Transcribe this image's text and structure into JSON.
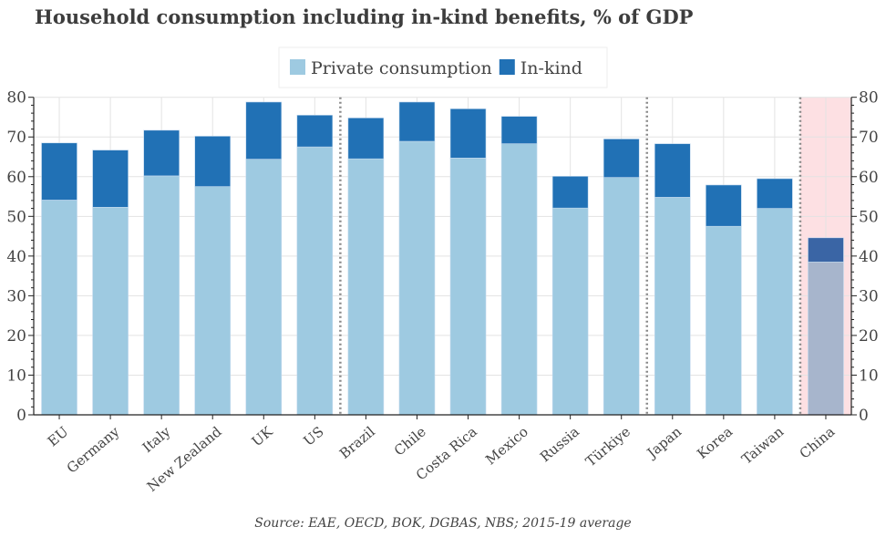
{
  "chart_data": {
    "type": "bar",
    "stacked": true,
    "title": "Household consumption including in-kind benefits, % of GDP",
    "source": "Source: EAE, OECD, BOK, DGBAS, NBS; 2015-19 average",
    "categories": [
      "EU",
      "Germany",
      "Italy",
      "New Zealand",
      "UK",
      "US",
      "Brazil",
      "Chile",
      "Costa Rica",
      "Mexico",
      "Russia",
      "Türkiye",
      "Japan",
      "Korea",
      "Taiwan",
      "China"
    ],
    "series": [
      {
        "name": "Private consumption",
        "color": "#9ecae1",
        "values": [
          54.1,
          52.3,
          60.2,
          57.5,
          64.4,
          67.5,
          64.5,
          68.9,
          64.7,
          68.3,
          52.1,
          59.8,
          54.8,
          47.5,
          52.0,
          38.5
        ]
      },
      {
        "name": "In-kind",
        "color": "#2171b5",
        "values": [
          14.4,
          14.4,
          11.5,
          12.7,
          14.4,
          8.0,
          10.3,
          9.9,
          12.4,
          6.9,
          8.0,
          9.7,
          13.5,
          10.4,
          7.5,
          6.1
        ]
      }
    ],
    "highlight": {
      "category": "China",
      "background": "#fde0e3",
      "private_color": "#a7b5cc",
      "inkind_color": "#3a65a5"
    },
    "group_dividers_after": [
      "US",
      "Türkiye",
      "Taiwan"
    ],
    "ylim": [
      0,
      80
    ],
    "yticks": [
      0,
      10,
      20,
      30,
      40,
      50,
      60,
      70,
      80
    ],
    "grid": true,
    "legend_placement": "top-center"
  }
}
